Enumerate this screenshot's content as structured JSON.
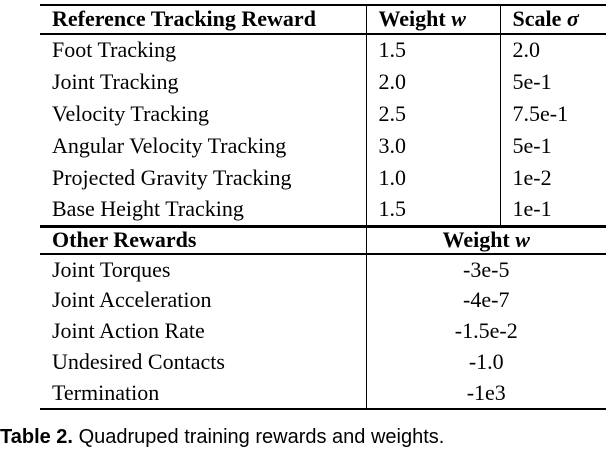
{
  "table": {
    "header": {
      "reward_col": "Reference Tracking Reward",
      "weight_label": "Weight",
      "weight_symbol": "w",
      "scale_label": "Scale",
      "scale_symbol": "σ"
    },
    "reference_rows": [
      {
        "name": "Foot Tracking",
        "weight": "1.5",
        "scale": "2.0"
      },
      {
        "name": "Joint Tracking",
        "weight": "2.0",
        "scale": "5e-1"
      },
      {
        "name": "Velocity Tracking",
        "weight": "2.5",
        "scale": "7.5e-1"
      },
      {
        "name": "Angular Velocity Tracking",
        "weight": "3.0",
        "scale": "5e-1"
      },
      {
        "name": "Projected Gravity Tracking",
        "weight": "1.0",
        "scale": "1e-2"
      },
      {
        "name": "Base Height Tracking",
        "weight": "1.5",
        "scale": "1e-1"
      }
    ],
    "section2_header": {
      "label": "Other Rewards",
      "weight_label": "Weight",
      "weight_symbol": "w"
    },
    "other_rows": [
      {
        "name": "Joint Torques",
        "weight": "-3e-5"
      },
      {
        "name": "Joint Acceleration",
        "weight": "-4e-7"
      },
      {
        "name": "Joint Action Rate",
        "weight": "-1.5e-2"
      },
      {
        "name": "Undesired Contacts",
        "weight": "-1.0"
      },
      {
        "name": "Termination",
        "weight": "-1e3"
      }
    ]
  },
  "caption": {
    "label": "Table 2.",
    "text": "Quadruped training rewards and weights."
  },
  "colors": {
    "background": "#ffffff",
    "text": "#000000",
    "rule": "#000000"
  },
  "chart_data": {
    "type": "table",
    "title": "Table 2. Quadruped training rewards and weights.",
    "sections": [
      {
        "columns": [
          "Reference Tracking Reward",
          "Weight w",
          "Scale σ"
        ],
        "rows": [
          [
            "Foot Tracking",
            "1.5",
            "2.0"
          ],
          [
            "Joint Tracking",
            "2.0",
            "5e-1"
          ],
          [
            "Velocity Tracking",
            "2.5",
            "7.5e-1"
          ],
          [
            "Angular Velocity Tracking",
            "3.0",
            "5e-1"
          ],
          [
            "Projected Gravity Tracking",
            "1.0",
            "1e-2"
          ],
          [
            "Base Height Tracking",
            "1.5",
            "1e-1"
          ]
        ]
      },
      {
        "columns": [
          "Other Rewards",
          "Weight w"
        ],
        "rows": [
          [
            "Joint Torques",
            "-3e-5"
          ],
          [
            "Joint Acceleration",
            "-4e-7"
          ],
          [
            "Joint Action Rate",
            "-1.5e-2"
          ],
          [
            "Undesired Contacts",
            "-1.0"
          ],
          [
            "Termination",
            "-1e3"
          ]
        ]
      }
    ]
  }
}
